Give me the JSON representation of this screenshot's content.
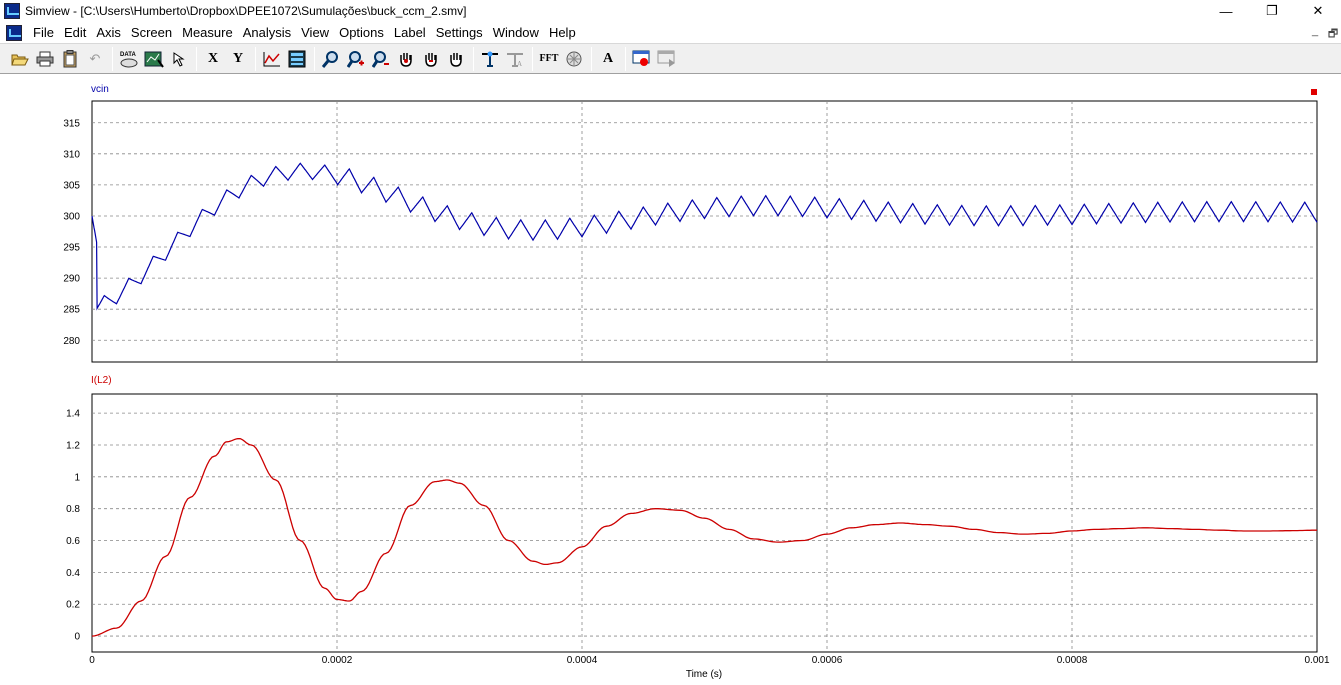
{
  "window": {
    "title": "Simview - [C:\\Users\\Humberto\\Dropbox\\DPEE1072\\Sumulações\\buck_ccm_2.smv]",
    "minimize_glyph": "—",
    "maximize_glyph": "❐",
    "close_glyph": "✕"
  },
  "menu": {
    "items": [
      {
        "label": "File"
      },
      {
        "label": "Edit"
      },
      {
        "label": "Axis"
      },
      {
        "label": "Screen"
      },
      {
        "label": "Measure"
      },
      {
        "label": "Analysis"
      },
      {
        "label": "View"
      },
      {
        "label": "Options"
      },
      {
        "label": "Label"
      },
      {
        "label": "Settings"
      },
      {
        "label": "Window"
      },
      {
        "label": "Help"
      }
    ],
    "mdi_minimize": "_",
    "mdi_restore": "🗗"
  },
  "toolbar": {
    "x_label": "X",
    "y_label": "Y",
    "fft_label": "FFT",
    "a_label": "A",
    "data_label": "DATA",
    "icons": [
      "open-icon",
      "print-icon",
      "clipboard-icon",
      "undo-icon",
      "data-icon",
      "select-data-icon",
      "cursor-icon",
      "x-axis-icon",
      "y-axis-icon",
      "chart-icon",
      "display-icon",
      "zoom-icon",
      "zoom-in-icon",
      "zoom-out-icon",
      "pan-hand-icon",
      "pan-hand-2-icon",
      "hand-icon",
      "measure-icon",
      "measure-disabled-icon",
      "fft-icon",
      "circle-icon",
      "text-icon",
      "record-icon",
      "stop-icon"
    ]
  },
  "colors": {
    "vcin": "#0000aa",
    "il2": "#cc0000",
    "grid": "#888888",
    "marker": "#e00000"
  },
  "chart_data": [
    {
      "type": "line",
      "title": "vcin",
      "series": [
        {
          "name": "vcin",
          "color": "#0000aa"
        }
      ],
      "x_range": [
        0,
        0.001
      ],
      "ylim": [
        276.5,
        318.5
      ],
      "yticks": [
        280,
        285,
        290,
        295,
        300,
        305,
        310,
        315
      ],
      "ytick_labels": [
        "280",
        "285",
        "290",
        "295",
        "300",
        "305",
        "310",
        "315"
      ],
      "grid": true,
      "waveform": {
        "dc_level": 300.5,
        "initial_deviation": -15.5,
        "decay_time_constant": 0.000215,
        "oscillation_frequency_hz": 2650,
        "ripple_frequency_hz": 50000,
        "ripple_amplitude": 3.2,
        "x_start": 0,
        "y_start": 300
      }
    },
    {
      "type": "line",
      "title": "I(L2)",
      "series": [
        {
          "name": "I(L2)",
          "color": "#cc0000"
        }
      ],
      "x_range": [
        0,
        0.001
      ],
      "ylim": [
        -0.1,
        1.52
      ],
      "yticks": [
        0,
        0.2,
        0.4,
        0.6,
        0.8,
        1,
        1.2,
        1.4
      ],
      "ytick_labels": [
        "0",
        "0.2",
        "0.4",
        "0.6",
        "0.8",
        "1",
        "1.2",
        "1.4"
      ],
      "grid": true,
      "points": [
        [
          0,
          0
        ],
        [
          2e-05,
          0.05
        ],
        [
          4e-05,
          0.22
        ],
        [
          6e-05,
          0.5
        ],
        [
          8e-05,
          0.87
        ],
        [
          0.0001,
          1.13
        ],
        [
          0.00011,
          1.22
        ],
        [
          0.00012,
          1.24
        ],
        [
          0.00013,
          1.2
        ],
        [
          0.00015,
          0.98
        ],
        [
          0.00017,
          0.6
        ],
        [
          0.00019,
          0.3
        ],
        [
          0.0002,
          0.23
        ],
        [
          0.00021,
          0.22
        ],
        [
          0.00022,
          0.28
        ],
        [
          0.00024,
          0.52
        ],
        [
          0.00026,
          0.82
        ],
        [
          0.00028,
          0.97
        ],
        [
          0.00029,
          0.98
        ],
        [
          0.0003,
          0.96
        ],
        [
          0.00032,
          0.82
        ],
        [
          0.00034,
          0.6
        ],
        [
          0.00036,
          0.47
        ],
        [
          0.00037,
          0.45
        ],
        [
          0.00038,
          0.46
        ],
        [
          0.0004,
          0.56
        ],
        [
          0.00042,
          0.69
        ],
        [
          0.00044,
          0.77
        ],
        [
          0.00046,
          0.8
        ],
        [
          0.00048,
          0.79
        ],
        [
          0.0005,
          0.74
        ],
        [
          0.00052,
          0.67
        ],
        [
          0.00054,
          0.61
        ],
        [
          0.00056,
          0.59
        ],
        [
          0.00058,
          0.6
        ],
        [
          0.0006,
          0.64
        ],
        [
          0.00062,
          0.68
        ],
        [
          0.00064,
          0.7
        ],
        [
          0.00066,
          0.71
        ],
        [
          0.00068,
          0.7
        ],
        [
          0.0007,
          0.69
        ],
        [
          0.00072,
          0.67
        ],
        [
          0.00074,
          0.65
        ],
        [
          0.00076,
          0.64
        ],
        [
          0.00078,
          0.645
        ],
        [
          0.0008,
          0.66
        ],
        [
          0.00082,
          0.67
        ],
        [
          0.00084,
          0.675
        ],
        [
          0.00086,
          0.68
        ],
        [
          0.00088,
          0.675
        ],
        [
          0.0009,
          0.67
        ],
        [
          0.00092,
          0.665
        ],
        [
          0.00094,
          0.66
        ],
        [
          0.00096,
          0.66
        ],
        [
          0.00098,
          0.662
        ],
        [
          0.001,
          0.665
        ]
      ]
    }
  ],
  "x_axis": {
    "label": "Time (s)",
    "ticks": [
      0,
      0.0002,
      0.0004,
      0.0006,
      0.0008,
      0.001
    ],
    "tick_labels": [
      "0",
      "0.0002",
      "0.0004",
      "0.0006",
      "0.0008",
      "0.001"
    ]
  }
}
